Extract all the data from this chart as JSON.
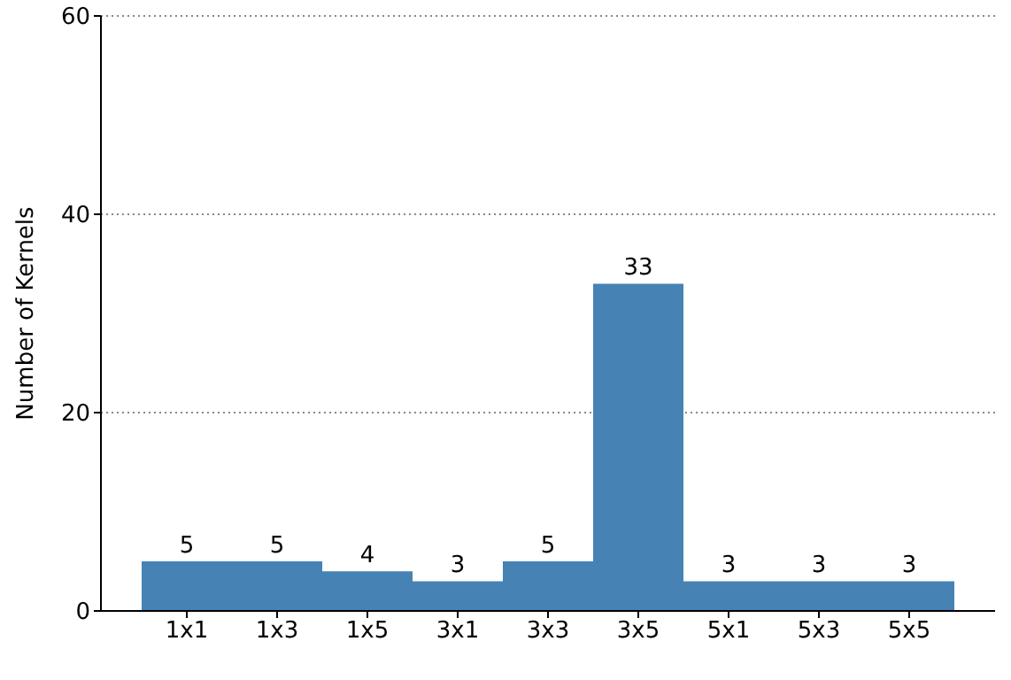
{
  "chart_data": {
    "type": "bar",
    "ylabel": "Number of Kernels",
    "categories": [
      "1x1",
      "1x3",
      "1x5",
      "3x1",
      "3x3",
      "3x5",
      "5x1",
      "5x3",
      "5x5"
    ],
    "values": [
      5,
      5,
      4,
      3,
      5,
      33,
      3,
      3,
      3
    ],
    "color": "#4682b4",
    "ylim": [
      0,
      60
    ],
    "yticks": [
      0,
      20,
      40,
      60
    ],
    "grid": "y",
    "data_labels": true,
    "legend": false
  }
}
